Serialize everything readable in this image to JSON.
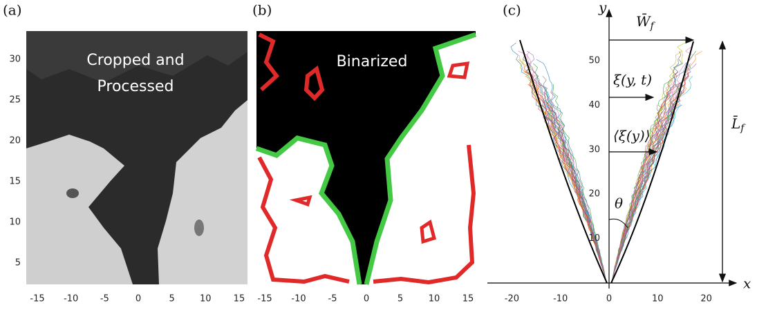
{
  "panels": [
    {
      "label": "(a)",
      "title_lines": [
        "Cropped and",
        "Processed"
      ],
      "xticks": [
        -15,
        -10,
        -5,
        0,
        5,
        10,
        15
      ],
      "yticks": [
        5,
        10,
        15,
        20,
        25,
        30
      ]
    },
    {
      "label": "(b)",
      "title_lines": [
        "Binarized"
      ],
      "xticks": [
        -15,
        -10,
        -5,
        0,
        5,
        10,
        15
      ]
    },
    {
      "label": "(c)",
      "x_label": "x",
      "y_label": "y",
      "xticks": [
        -20,
        -10,
        0,
        10,
        20
      ],
      "yticks": [
        10,
        20,
        30,
        40,
        50
      ],
      "annotations": {
        "width": {
          "main": "W̄",
          "sub": "f"
        },
        "displacement": "ξ(y, t)",
        "mean_displacement": "⟨ξ(y)⟩",
        "length": {
          "main": "L̄",
          "sub": "f"
        },
        "angle": "θ"
      }
    }
  ]
}
